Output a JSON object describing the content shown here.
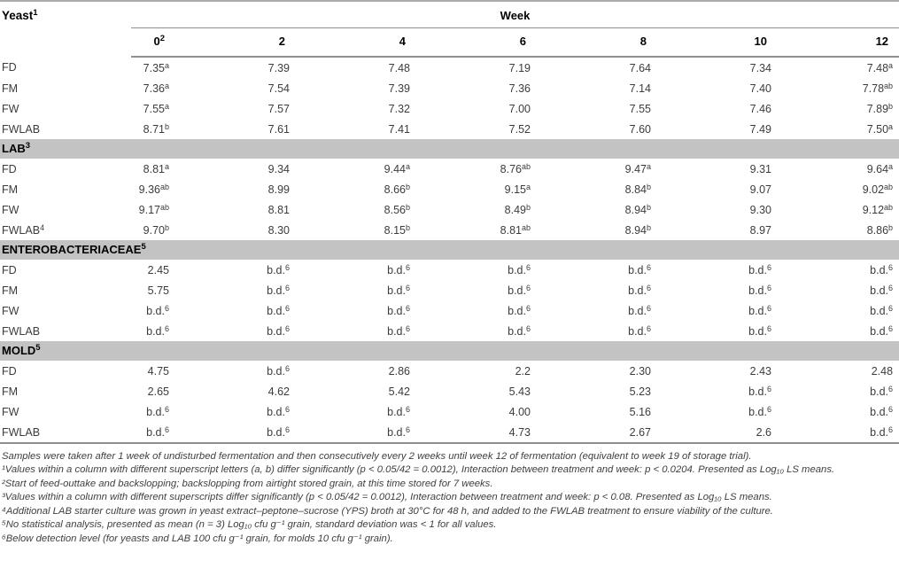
{
  "colors": {
    "section_bar_gray": "#c3c3c3",
    "rule_gray": "#8f8f8f",
    "value_text": "#3c3c3c",
    "header_text": "#000000"
  },
  "table": {
    "corner": {
      "label": "Yeast",
      "sup": "1"
    },
    "week_label": "Week",
    "week_cols": [
      {
        "label": "0",
        "sup": "2"
      },
      {
        "label": "2",
        "sup": ""
      },
      {
        "label": "4",
        "sup": ""
      },
      {
        "label": "6",
        "sup": ""
      },
      {
        "label": "8",
        "sup": ""
      },
      {
        "label": "10",
        "sup": ""
      },
      {
        "label": "12",
        "sup": ""
      }
    ],
    "sections": [
      {
        "title": "",
        "sup": "",
        "rows": [
          {
            "label": "FD",
            "sup": "",
            "cells": [
              {
                "v": "7.35",
                "s": "a"
              },
              {
                "v": "7.39",
                "s": ""
              },
              {
                "v": "7.48",
                "s": ""
              },
              {
                "v": "7.19",
                "s": ""
              },
              {
                "v": "7.64",
                "s": ""
              },
              {
                "v": "7.34",
                "s": ""
              },
              {
                "v": "7.48",
                "s": "a"
              }
            ]
          },
          {
            "label": "FM",
            "sup": "",
            "cells": [
              {
                "v": "7.36",
                "s": "a"
              },
              {
                "v": "7.54",
                "s": ""
              },
              {
                "v": "7.39",
                "s": ""
              },
              {
                "v": "7.36",
                "s": ""
              },
              {
                "v": "7.14",
                "s": ""
              },
              {
                "v": "7.40",
                "s": ""
              },
              {
                "v": "7.78",
                "s": "ab"
              }
            ]
          },
          {
            "label": "FW",
            "sup": "",
            "cells": [
              {
                "v": "7.55",
                "s": "a"
              },
              {
                "v": "7.57",
                "s": ""
              },
              {
                "v": "7.32",
                "s": ""
              },
              {
                "v": "7.00",
                "s": ""
              },
              {
                "v": "7.55",
                "s": ""
              },
              {
                "v": "7.46",
                "s": ""
              },
              {
                "v": "7.89",
                "s": "b"
              }
            ]
          },
          {
            "label": "FWLAB",
            "sup": "",
            "cells": [
              {
                "v": "8.71",
                "s": "b"
              },
              {
                "v": "7.61",
                "s": ""
              },
              {
                "v": "7.41",
                "s": ""
              },
              {
                "v": "7.52",
                "s": ""
              },
              {
                "v": "7.60",
                "s": ""
              },
              {
                "v": "7.49",
                "s": ""
              },
              {
                "v": "7.50",
                "s": "a"
              }
            ]
          }
        ]
      },
      {
        "title": "LAB",
        "sup": "3",
        "rows": [
          {
            "label": "FD",
            "sup": "",
            "cells": [
              {
                "v": "8.81",
                "s": "a"
              },
              {
                "v": "9.34",
                "s": ""
              },
              {
                "v": "9.44",
                "s": "a"
              },
              {
                "v": "8.76",
                "s": "ab"
              },
              {
                "v": "9.47",
                "s": "a"
              },
              {
                "v": "9.31",
                "s": ""
              },
              {
                "v": "9.64",
                "s": "a"
              }
            ]
          },
          {
            "label": "FM",
            "sup": "",
            "cells": [
              {
                "v": "9.36",
                "s": "ab"
              },
              {
                "v": "8.99",
                "s": ""
              },
              {
                "v": "8.66",
                "s": "b"
              },
              {
                "v": "9.15",
                "s": "a"
              },
              {
                "v": "8.84",
                "s": "b"
              },
              {
                "v": "9.07",
                "s": ""
              },
              {
                "v": "9.02",
                "s": "ab"
              }
            ]
          },
          {
            "label": "FW",
            "sup": "",
            "cells": [
              {
                "v": "9.17",
                "s": "ab"
              },
              {
                "v": "8.81",
                "s": ""
              },
              {
                "v": "8.56",
                "s": "b"
              },
              {
                "v": "8.49",
                "s": "b"
              },
              {
                "v": "8.94",
                "s": "b"
              },
              {
                "v": "9.30",
                "s": ""
              },
              {
                "v": "9.12",
                "s": "ab"
              }
            ]
          },
          {
            "label": "FWLAB",
            "sup": "4",
            "cells": [
              {
                "v": "9.70",
                "s": "b"
              },
              {
                "v": "8.30",
                "s": ""
              },
              {
                "v": "8.15",
                "s": "b"
              },
              {
                "v": "8.81",
                "s": "ab"
              },
              {
                "v": "8.94",
                "s": "b"
              },
              {
                "v": "8.97",
                "s": ""
              },
              {
                "v": "8.86",
                "s": "b"
              }
            ]
          }
        ]
      },
      {
        "title": "ENTEROBACTERIACEAE",
        "sup": "5",
        "rows": [
          {
            "label": "FD",
            "sup": "",
            "cells": [
              {
                "v": "2.45",
                "s": ""
              },
              {
                "v": "b.d.",
                "s": "6"
              },
              {
                "v": "b.d.",
                "s": "6"
              },
              {
                "v": "b.d.",
                "s": "6"
              },
              {
                "v": "b.d.",
                "s": "6"
              },
              {
                "v": "b.d.",
                "s": "6"
              },
              {
                "v": "b.d.",
                "s": "6"
              }
            ]
          },
          {
            "label": "FM",
            "sup": "",
            "cells": [
              {
                "v": "5.75",
                "s": ""
              },
              {
                "v": "b.d.",
                "s": "6"
              },
              {
                "v": "b.d.",
                "s": "6"
              },
              {
                "v": "b.d.",
                "s": "6"
              },
              {
                "v": "b.d.",
                "s": "6"
              },
              {
                "v": "b.d.",
                "s": "6"
              },
              {
                "v": "b.d.",
                "s": "6"
              }
            ]
          },
          {
            "label": "FW",
            "sup": "",
            "cells": [
              {
                "v": "b.d.",
                "s": "6"
              },
              {
                "v": "b.d.",
                "s": "6"
              },
              {
                "v": "b.d.",
                "s": "6"
              },
              {
                "v": "b.d.",
                "s": "6"
              },
              {
                "v": "b.d.",
                "s": "6"
              },
              {
                "v": "b.d.",
                "s": "6"
              },
              {
                "v": "b.d.",
                "s": "6"
              }
            ]
          },
          {
            "label": "FWLAB",
            "sup": "",
            "cells": [
              {
                "v": "b.d.",
                "s": "6"
              },
              {
                "v": "b.d.",
                "s": "6"
              },
              {
                "v": "b.d.",
                "s": "6"
              },
              {
                "v": "b.d.",
                "s": "6"
              },
              {
                "v": "b.d.",
                "s": "6"
              },
              {
                "v": "b.d.",
                "s": "6"
              },
              {
                "v": "b.d.",
                "s": "6"
              }
            ]
          }
        ]
      },
      {
        "title": "MOLD",
        "sup": "5",
        "rows": [
          {
            "label": "FD",
            "sup": "",
            "cells": [
              {
                "v": "4.75",
                "s": ""
              },
              {
                "v": "b.d.",
                "s": "6"
              },
              {
                "v": "2.86",
                "s": ""
              },
              {
                "v": "2.2",
                "s": ""
              },
              {
                "v": "2.30",
                "s": ""
              },
              {
                "v": "2.43",
                "s": ""
              },
              {
                "v": "2.48",
                "s": ""
              }
            ]
          },
          {
            "label": "FM",
            "sup": "",
            "cells": [
              {
                "v": "2.65",
                "s": ""
              },
              {
                "v": "4.62",
                "s": ""
              },
              {
                "v": "5.42",
                "s": ""
              },
              {
                "v": "5.43",
                "s": ""
              },
              {
                "v": "5.23",
                "s": ""
              },
              {
                "v": "b.d.",
                "s": "6"
              },
              {
                "v": "b.d.",
                "s": "6"
              }
            ]
          },
          {
            "label": "FW",
            "sup": "",
            "cells": [
              {
                "v": "b.d.",
                "s": "6"
              },
              {
                "v": "b.d.",
                "s": "6"
              },
              {
                "v": "b.d.",
                "s": "6"
              },
              {
                "v": "4.00",
                "s": ""
              },
              {
                "v": "5.16",
                "s": ""
              },
              {
                "v": "b.d.",
                "s": "6"
              },
              {
                "v": "b.d.",
                "s": "6"
              }
            ]
          },
          {
            "label": "FWLAB",
            "sup": "",
            "cells": [
              {
                "v": "b.d.",
                "s": "6"
              },
              {
                "v": "b.d.",
                "s": "6"
              },
              {
                "v": "b.d.",
                "s": "6"
              },
              {
                "v": "4.73",
                "s": ""
              },
              {
                "v": "2.67",
                "s": ""
              },
              {
                "v": "2.6",
                "s": ""
              },
              {
                "v": "b.d.",
                "s": "6"
              }
            ]
          }
        ]
      }
    ]
  },
  "footnotes": [
    "Samples were taken after 1 week of undisturbed fermentation and then consecutively every 2 weeks until week 12 of fermentation (equivalent to week 19 of storage trial).",
    "¹Values within a column with different superscript letters (a, b) differ significantly (p < 0.05/42 = 0.0012), Interaction between treatment and week: p < 0.0204. Presented as Log₁₀ LS means.",
    "²Start of feed-outtake and backslopping; backslopping from airtight stored grain, at this time stored for 7 weeks.",
    "³Values within a column with different superscripts differ significantly (p < 0.05/42 = 0.0012), Interaction between treatment and week: p < 0.08. Presented as Log₁₀ LS means.",
    "⁴Additional LAB starter culture was grown in yeast extract–peptone–sucrose (YPS) broth at 30°C for 48 h, and added to the FWLAB treatment to ensure viability of the culture.",
    "⁵No statistical analysis, presented as mean (n = 3) Log₁₀ cfu g⁻¹ grain, standard deviation was < 1 for all values.",
    "⁶Below detection level (for yeasts and LAB 100 cfu g⁻¹ grain, for molds 10 cfu g⁻¹ grain)."
  ]
}
